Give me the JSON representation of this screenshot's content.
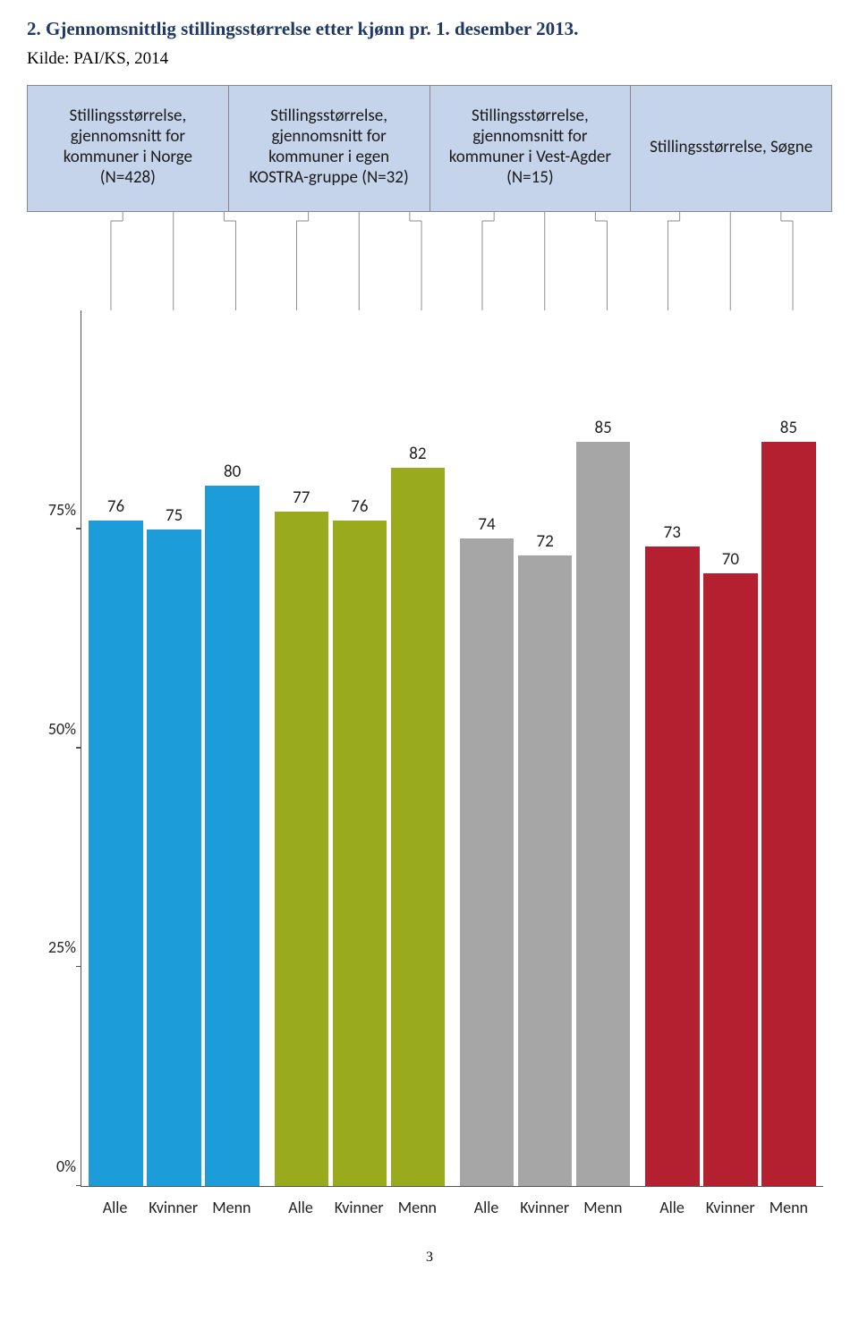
{
  "title": "2. Gjennomsnittlig stillingsstørrelse etter kjønn pr. 1. desember 2013.",
  "source": "Kilde: PAI/KS, 2014",
  "page_number": "3",
  "chart": {
    "type": "bar",
    "y_axis": {
      "ticks": [
        0,
        25,
        50,
        75
      ],
      "labels": [
        "0%",
        "25%",
        "50%",
        "75%"
      ],
      "max": 100,
      "axis_color": "#555555",
      "tick_fontsize": 18
    },
    "x_category_labels": [
      "Alle",
      "Kvinner",
      "Menn"
    ],
    "groups": [
      {
        "header": "Stillingsstørrelse, gjennomsnitt for kommuner i Norge\n(N=428)",
        "color": "#1c9cd8",
        "values": [
          76,
          75,
          80
        ]
      },
      {
        "header": "Stillingsstørrelse, gjennomsnitt for kommuner i egen KOSTRA-gruppe (N=32)",
        "color": "#9aaa1d",
        "values": [
          77,
          76,
          82
        ]
      },
      {
        "header": "Stillingsstørrelse, gjennomsnitt for kommuner i Vest-Agder (N=15)",
        "color": "#a6a6a6",
        "values": [
          74,
          72,
          85
        ]
      },
      {
        "header": "Stillingsstørrelse, Søgne",
        "color": "#b4202f",
        "values": [
          73,
          70,
          85
        ]
      }
    ],
    "header_bg": "#c5d4ea",
    "header_fontsize": 19,
    "value_label_fontsize": 19,
    "background_color": "#ffffff",
    "connector_color": "#888888"
  }
}
